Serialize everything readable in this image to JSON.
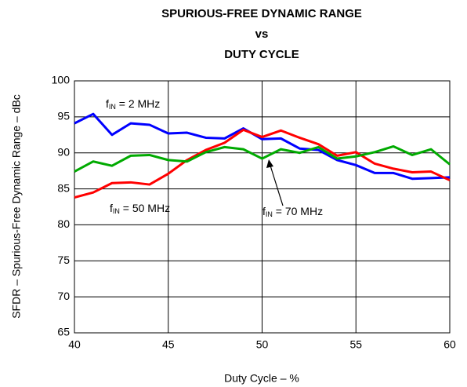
{
  "chart_data": {
    "type": "line",
    "title": [
      "SPURIOUS-FREE DYNAMIC RANGE",
      "vs",
      "DUTY CYCLE"
    ],
    "xlabel": "Duty Cycle – %",
    "ylabel": "SFDR – Spurious-Free Dynamic Range – dBc",
    "x": [
      40,
      41,
      42,
      43,
      44,
      45,
      46,
      47,
      48,
      49,
      50,
      51,
      52,
      53,
      54,
      55,
      56,
      57,
      58,
      59,
      60
    ],
    "series": [
      {
        "label": [
          "f",
          "IN",
          " = 2 MHz"
        ],
        "color": "#0000ff",
        "values": [
          94.1,
          95.4,
          92.5,
          94.1,
          93.9,
          92.7,
          92.8,
          92.1,
          92.0,
          93.4,
          91.9,
          92.0,
          90.6,
          90.4,
          89.0,
          88.3,
          87.2,
          87.2,
          86.4,
          86.5,
          86.6
        ]
      },
      {
        "label": [
          "f",
          "IN",
          " = 50 MHz"
        ],
        "color": "#ff0000",
        "values": [
          83.8,
          84.5,
          85.8,
          85.9,
          85.6,
          87.1,
          89.0,
          90.4,
          91.4,
          93.2,
          92.2,
          93.1,
          92.1,
          91.2,
          89.6,
          90.1,
          88.5,
          87.8,
          87.3,
          87.4,
          86.2
        ]
      },
      {
        "label": [
          "f",
          "IN",
          " = 70 MHz"
        ],
        "color": "#00aa00",
        "values": [
          87.4,
          88.8,
          88.2,
          89.6,
          89.7,
          89.0,
          88.8,
          90.1,
          90.8,
          90.5,
          89.2,
          90.5,
          90.0,
          90.8,
          89.2,
          89.5,
          90.1,
          90.9,
          89.7,
          90.5,
          88.4
        ]
      }
    ],
    "xlim": [
      40,
      60
    ],
    "xticks": [
      40,
      45,
      50,
      55,
      60
    ],
    "ylim": [
      65,
      100
    ],
    "yticks": [
      65,
      70,
      75,
      80,
      85,
      90,
      95,
      100
    ],
    "grid": true
  }
}
